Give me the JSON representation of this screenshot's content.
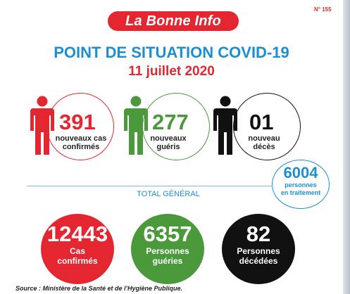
{
  "header": {
    "issue_number": "N° 155",
    "brand": "La Bonne Info",
    "title": "POINT DE SITUATION COVID-19",
    "date": "11 juillet 2020"
  },
  "daily": [
    {
      "value": "391",
      "label_line1": "nouveaux cas",
      "label_line2": "confirmés",
      "color": "#e3262f",
      "icon": "person-icon"
    },
    {
      "value": "277",
      "label_line1": "nouveaux",
      "label_line2": "guéris",
      "color": "#4a9a3c",
      "icon": "person-icon"
    },
    {
      "value": "01",
      "label_line1": "nouveau",
      "label_line2": "décès",
      "color": "#111111",
      "icon": "person-icon"
    }
  ],
  "in_treatment": {
    "value": "6004",
    "label_line1": "personnes",
    "label_line2": "en traitement",
    "color": "#1d8fd0"
  },
  "totals": {
    "heading": "TOTAL GÉNÉRAL",
    "items": [
      {
        "value": "12443",
        "label_line1": "Cas",
        "label_line2": "confirmés",
        "color": "#e3262f"
      },
      {
        "value": "6357",
        "label_line1": "Personnes",
        "label_line2": "guéries",
        "color": "#4a9a3c"
      },
      {
        "value": "82",
        "label_line1": "Personnes",
        "label_line2": "décédées",
        "color": "#111111"
      }
    ]
  },
  "source": "Source : Ministère de la Santé et de l’Hygiène Publique."
}
